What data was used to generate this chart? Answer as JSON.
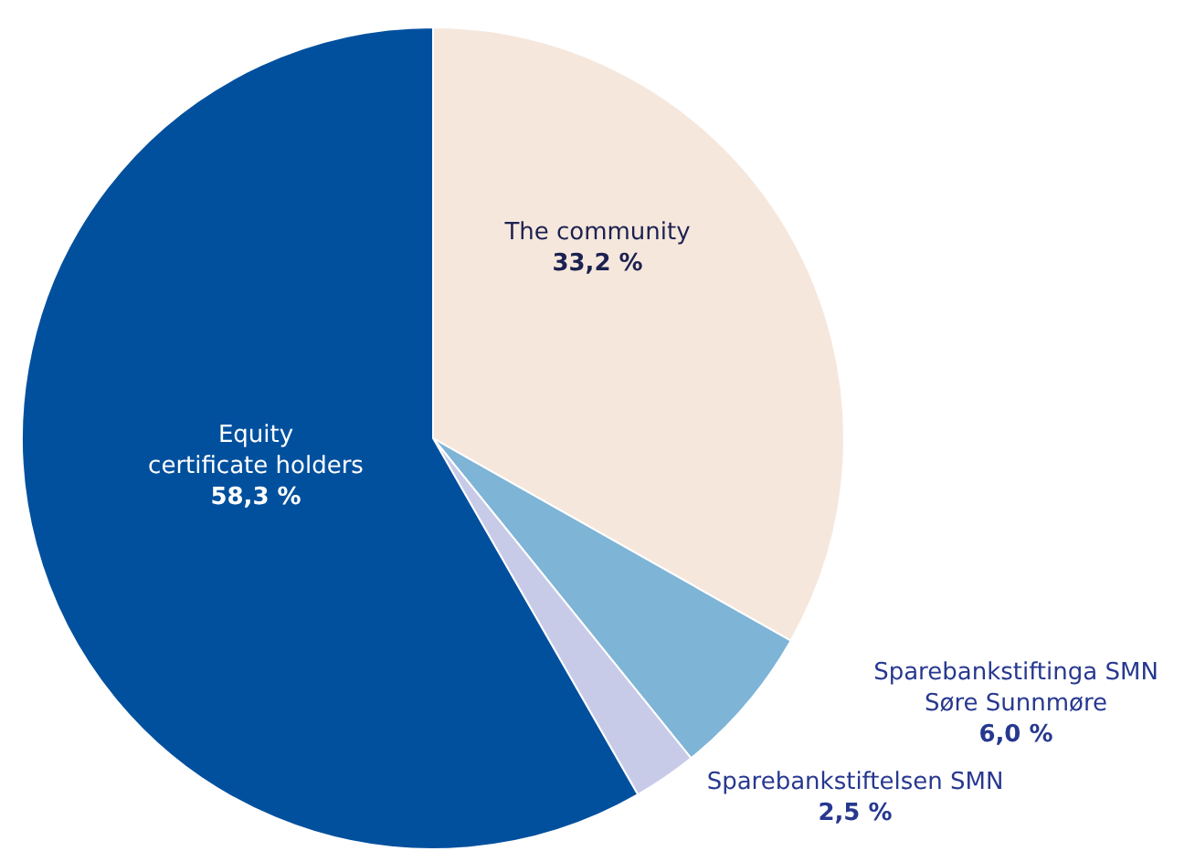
{
  "chart_data": {
    "type": "pie",
    "categories": [
      "The community",
      "Sparebankstiftinga SMN Søre Sunnmøre",
      "Sparebankstiftelsen SMN",
      "Equity certificate holders"
    ],
    "values": [
      33.2,
      6.0,
      2.5,
      58.3
    ],
    "value_labels": [
      "33,2 %",
      "6,0 %",
      "2,5 %",
      "58,3 %"
    ],
    "colors": [
      "#f6e7dc",
      "#7eb4d6",
      "#c8cbe8",
      "#00509e"
    ]
  }
}
